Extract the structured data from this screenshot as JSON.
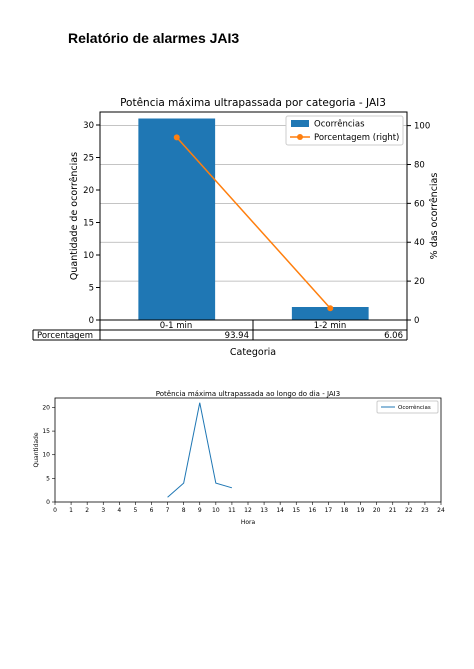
{
  "page": {
    "title": "Relatório de alarmes JAI3"
  },
  "colors": {
    "bar": "#1f77b4",
    "line_orange": "#ff7f0e",
    "line_blue": "#1f77b4",
    "grid": "#b0b0b0"
  },
  "chart_data": [
    {
      "type": "bar",
      "title": "Potência máxima ultrapassada por categoria - JAI3",
      "xlabel": "Categoria",
      "ylabel": "Quantidade de ocorrências",
      "ylabel_right": "% das ocorrências",
      "categories": [
        "0-1 min",
        "1-2 min"
      ],
      "ylim": [
        0,
        32
      ],
      "ylim_right": [
        0,
        107
      ],
      "yticks": [
        0,
        5,
        10,
        15,
        20,
        25,
        30
      ],
      "yticks_right": [
        0,
        20,
        40,
        60,
        80,
        100
      ],
      "series": [
        {
          "name": "Ocorrências",
          "values": [
            31,
            2
          ],
          "axis": "left"
        },
        {
          "name": "Porcentagem (right)",
          "values": [
            93.94,
            6.06
          ],
          "axis": "right"
        }
      ],
      "table": {
        "row_label": "Porcentagem",
        "cells": [
          "93.94",
          "6.06"
        ]
      },
      "grid": true,
      "legend": "top-right"
    },
    {
      "type": "line",
      "title": "Potência máxima ultrapassada ao longo do dia - JAI3",
      "xlabel": "Hora",
      "ylabel": "Quantidade",
      "xlim": [
        0,
        24
      ],
      "ylim": [
        0,
        22
      ],
      "xticks": [
        0,
        1,
        2,
        3,
        4,
        5,
        6,
        7,
        8,
        9,
        10,
        11,
        12,
        13,
        14,
        15,
        16,
        17,
        18,
        19,
        20,
        21,
        22,
        23,
        24
      ],
      "yticks": [
        0,
        5,
        10,
        15,
        20
      ],
      "series": [
        {
          "name": "Ocorrências",
          "x": [
            7,
            8,
            9,
            10,
            11
          ],
          "values": [
            1,
            4,
            21,
            4,
            3
          ]
        }
      ],
      "grid": false,
      "legend": "top-right"
    }
  ]
}
